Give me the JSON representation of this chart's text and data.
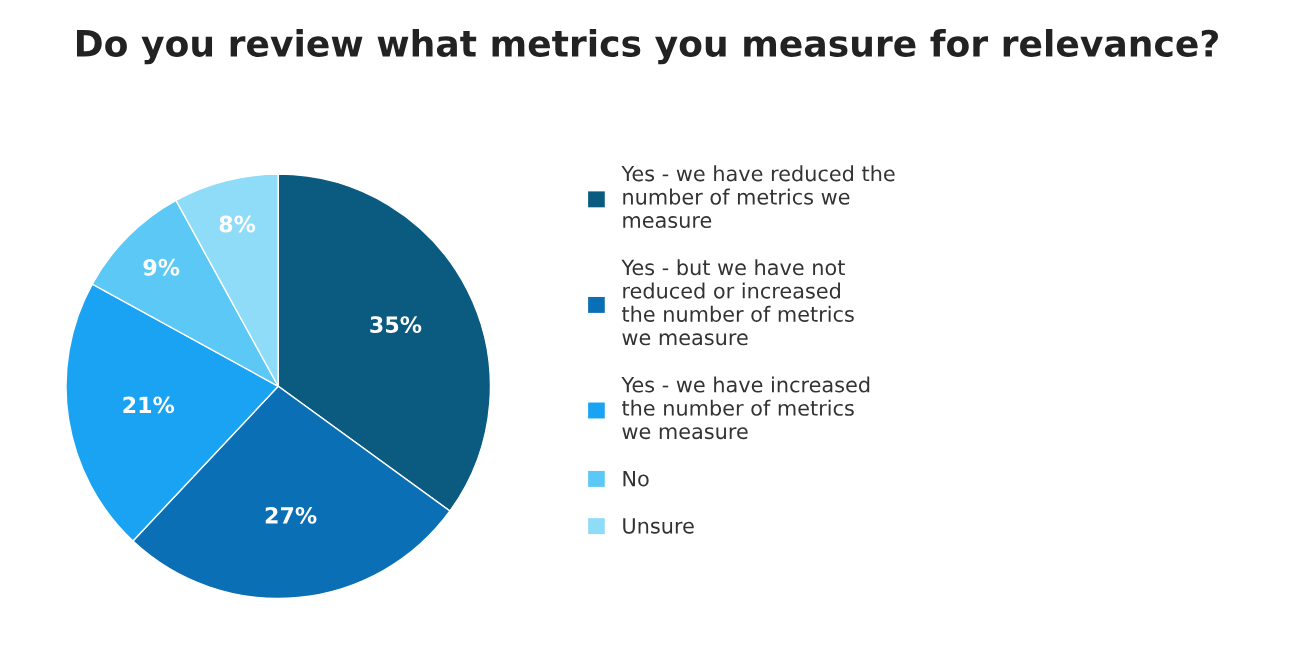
{
  "chart_data": {
    "type": "pie",
    "title": "Do you review what metrics you measure for relevance?",
    "categories": [
      "Yes - we have reduced the\nnumber of metrics we\nmeasure",
      "Yes - but we have not\nreduced or increased\nthe number of metrics\nwe measure",
      "Yes - we have increased\nthe number of metrics\nwe measure",
      "No",
      "Unsure"
    ],
    "values": [
      35,
      27,
      21,
      9,
      8
    ],
    "colors": [
      "#0b5a80",
      "#0b6fb5",
      "#1aa3f2",
      "#5cc8f5",
      "#8fdcf8"
    ],
    "value_labels": [
      "35%",
      "27%",
      "21%",
      "9%",
      "8%"
    ],
    "legend": "right"
  }
}
